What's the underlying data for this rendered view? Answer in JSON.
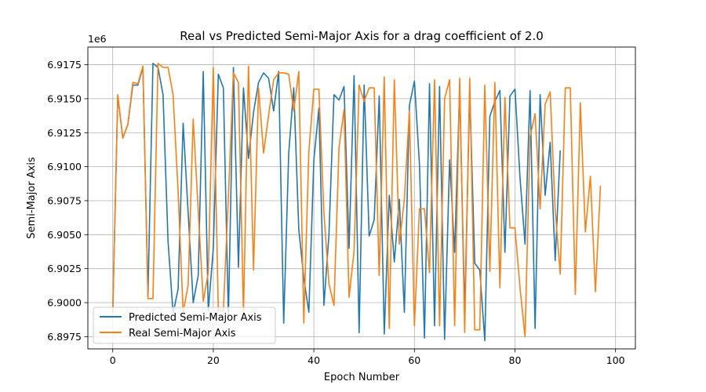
{
  "chart_data": {
    "type": "line",
    "title": "Real vs Predicted Semi-Major Axis for a drag coefficient of 2.0",
    "xlabel": "Epoch Number",
    "ylabel": "Semi-Major Axis",
    "y_offset_label": "1e6",
    "xlim": [
      -4.95,
      103.95
    ],
    "ylim": [
      6896600,
      6918800
    ],
    "x_ticks": [
      0,
      20,
      40,
      60,
      80,
      100
    ],
    "y_ticks": [
      6897500,
      6900000,
      6902500,
      6905000,
      6907500,
      6910000,
      6912500,
      6915000,
      6917500
    ],
    "y_tick_labels": [
      "6.8975",
      "6.9000",
      "6.9025",
      "6.9050",
      "6.9075",
      "6.9100",
      "6.9125",
      "6.9150",
      "6.9175"
    ],
    "grid": true,
    "legend_position": "lower-left",
    "series": [
      {
        "name": "Predicted Semi-Major Axis",
        "color": "#1f77b4",
        "values": [
          6899300,
          6915200,
          6912100,
          6913100,
          6916000,
          6916000,
          6917300,
          6900500,
          6917600,
          6917300,
          6915300,
          6904500,
          6899200,
          6901000,
          6913200,
          6906600,
          6900000,
          6902000,
          6917000,
          6899400,
          6904000,
          6916800,
          6915800,
          6898900,
          6917300,
          6902600,
          6915800,
          6910600,
          6914000,
          6916200,
          6916900,
          6916500,
          6914100,
          6917000,
          6898500,
          6911000,
          6915800,
          6905400,
          6901800,
          6899300,
          6910500,
          6914300,
          6899800,
          6905000,
          6915300,
          6914900,
          6915900,
          6904000,
          6916700,
          6897800,
          6916000,
          6904900,
          6906100,
          6915200,
          6897700,
          6907900,
          6903000,
          6907600,
          6899300,
          6914500,
          6916300,
          6910200,
          6897400,
          6916100,
          6898300,
          6915900,
          6897300,
          6910500,
          6903700,
          6915800,
          6899200,
          6915500,
          6902900,
          6902400,
          6897200,
          6913700,
          6914800,
          6915600,
          6903700,
          6915200,
          6915700,
          6909200,
          6904300,
          6915600,
          6898100,
          6915300,
          6907900,
          6911800,
          6903100,
          6911200
        ]
      },
      {
        "name": "Real Semi-Major Axis",
        "color": "#ff7f0e",
        "values": [
          6899300,
          6915300,
          6912100,
          6913100,
          6916200,
          6916100,
          6917400,
          6900300,
          6900300,
          6917600,
          6917300,
          6917300,
          6915300,
          6908200,
          6899300,
          6901300,
          6913500,
          6906800,
          6900100,
          6902200,
          6917300,
          6899400,
          6899400,
          6907800,
          6916900,
          6916200,
          6899200,
          6917400,
          6902400,
          6915800,
          6911000,
          6913800,
          6916400,
          6916900,
          6916900,
          6916800,
          6914100,
          6917000,
          6898500,
          6911100,
          6915700,
          6915700,
          6906600,
          6901400,
          6899800,
          6911400,
          6914200,
          6900400,
          6903800,
          6916000,
          6914800,
          6915800,
          6915800,
          6902000,
          6916600,
          6898100,
          6916400,
          6904300,
          6907600,
          6914100,
          6898300,
          6906900,
          6906900,
          6902200,
          6916400,
          6898300,
          6915000,
          6916400,
          6898300,
          6916500,
          6897800,
          6916500,
          6898000,
          6898000,
          6916000,
          6902300,
          6916200,
          6901100,
          6915100,
          6905500,
          6905500,
          6901100,
          6897500,
          6912200,
          6913900,
          6906900,
          6914600,
          6915500,
          6906800,
          6902100,
          6915800,
          6915800,
          6900600,
          6914700,
          6905200,
          6909300,
          6900800,
          6908600
        ]
      }
    ]
  }
}
